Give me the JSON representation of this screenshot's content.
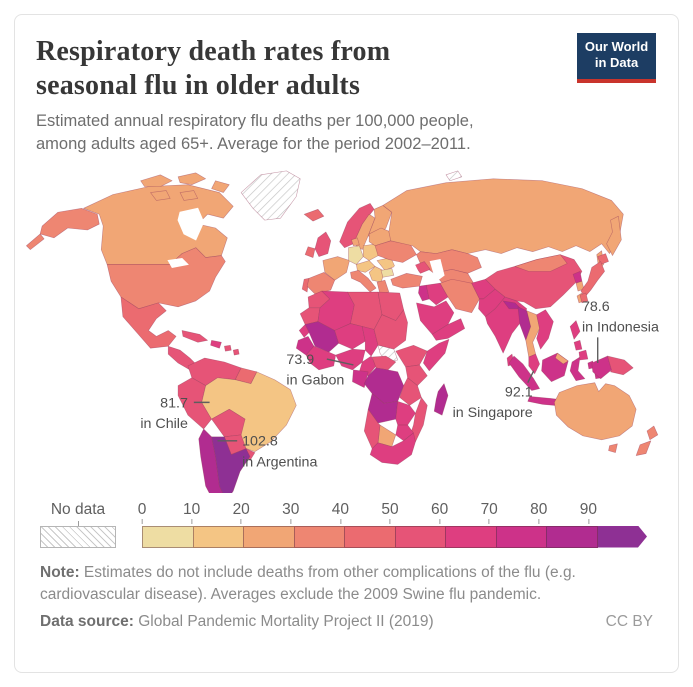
{
  "header": {
    "title": "Respiratory death rates from seasonal flu in older adults",
    "subtitle": "Estimated annual respiratory flu deaths per 100,000 people, among adults aged 65+. Average for the period 2002–2011.",
    "logo_line1": "Our World",
    "logo_line2": "in Data",
    "logo_bg": "#1d3d63",
    "logo_accent": "#c9342c"
  },
  "map": {
    "annotations": [
      {
        "value": "78.6",
        "label": "in Indonesia"
      },
      {
        "value": "73.9",
        "label": "in Gabon"
      },
      {
        "value": "92.1",
        "label": "in Singapore"
      },
      {
        "value": "81.7",
        "label": "in Chile"
      },
      {
        "value": "102.8",
        "label": "in Argentina"
      }
    ]
  },
  "legend": {
    "no_data_label": "No data",
    "ticks": [
      "0",
      "10",
      "20",
      "30",
      "40",
      "50",
      "60",
      "70",
      "80",
      "90"
    ]
  },
  "footer": {
    "note_label": "Note:",
    "note_text": " Estimates do not include deaths from other complications of the flu (e.g. cardiovascular disease). Averages exclude the 2009 Swine flu pandemic.",
    "source_label": "Data source:",
    "source_text": " Global Pandemic Mortality Project II (2019)",
    "license": "CC BY"
  },
  "chart_data": {
    "type": "heatmap",
    "subtype": "choropleth_world_map",
    "title": "Respiratory death rates from seasonal flu in older adults",
    "unit": "estimated annual respiratory flu deaths per 100,000 people, adults aged 65+",
    "period": "2002–2011",
    "legend_position": "bottom",
    "bin_ranges": [
      "0–10",
      "10–20",
      "20–30",
      "30–40",
      "40–50",
      "50–60",
      "60–70",
      "70–80",
      "80–90",
      "90+"
    ],
    "bin_colors": [
      "#eedda3",
      "#f4c584",
      "#f1a675",
      "#ee8672",
      "#eb6b70",
      "#e65477",
      "#de3e80",
      "#cd3289",
      "#b12c90",
      "#8e3094"
    ],
    "no_data_style": "white with gray diagonal hatching",
    "labeled_points": [
      {
        "country": "Indonesia",
        "value": 78.6
      },
      {
        "country": "Gabon",
        "value": 73.9
      },
      {
        "country": "Singapore",
        "value": 92.1
      },
      {
        "country": "Chile",
        "value": 81.7
      },
      {
        "country": "Argentina",
        "value": 102.8
      }
    ],
    "country_bins": {
      "greenland": "no_data",
      "svalbard": "no_data",
      "south-sudan": "no_data",
      "canada": 2,
      "united-states": 3,
      "mexico": 4,
      "central-america": 5,
      "cuba": 5,
      "hispaniola": 6,
      "caribbean": 5,
      "colombia-venezuela": 5,
      "guyanas": 4,
      "peru": 5,
      "brazil": 1,
      "bolivia": 5,
      "paraguay": 5,
      "uruguay": 5,
      "chile": 8,
      "argentina": 9,
      "iceland": 4,
      "norway": 5,
      "sweden": 2,
      "finland": 2,
      "united-kingdom": 5,
      "ireland": 4,
      "france": 2,
      "spain": 3,
      "portugal": 4,
      "germany": 0,
      "denmark": 2,
      "poland": 1,
      "czech-austria": 1,
      "italy": 3,
      "balkans": 1,
      "romania": 1,
      "bulgaria": 0,
      "greece": 3,
      "ukraine": 3,
      "belarus-baltics": 2,
      "russia": 2,
      "kazakhstan": 3,
      "central-asia": 3,
      "caucasus": 5,
      "turkey": 3,
      "levant": 7,
      "syria-iraq": 6,
      "iran": 3,
      "saudi-arabia": 6,
      "yemen-oman": 6,
      "afghanistan": 6,
      "pakistan": 6,
      "india": 6,
      "nepal": 8,
      "bangladesh": 8,
      "sri-lanka": 6,
      "china": 5,
      "mongolia": 3,
      "taiwan": 2,
      "north-korea": 7,
      "south-korea": 2,
      "japan": 4,
      "myanmar": 8,
      "thailand": 2,
      "vietnam-laos": 6,
      "malaysia": 6,
      "indonesia": 7,
      "malaysia-east": 2,
      "timor": 7,
      "philippines": 6,
      "new-guinea-west": 7,
      "papua-new-guinea": 5,
      "australia": 2,
      "tasmania": 3,
      "new-zealand": 3,
      "morocco": 5,
      "western-sahara": 5,
      "algeria": 6,
      "libya": 5,
      "egypt": 5,
      "mali": 8,
      "niger": 6,
      "chad": 6,
      "sudan": 5,
      "ethiopia": 5,
      "somalia": 6,
      "senegal": 6,
      "guinea-region": 7,
      "ivory-coast-ghana": 6,
      "nigeria": 6,
      "cameroon": 6,
      "central-african-republic": 5,
      "gabon-congo": 7,
      "dr-congo": 8,
      "kenya": 5,
      "tanzania": 5,
      "angola": 8,
      "zambia": 6,
      "mozambique": 5,
      "zimbabwe": 6,
      "botswana": 2,
      "namibia": 5,
      "south-africa": 6,
      "madagascar": 8
    }
  }
}
